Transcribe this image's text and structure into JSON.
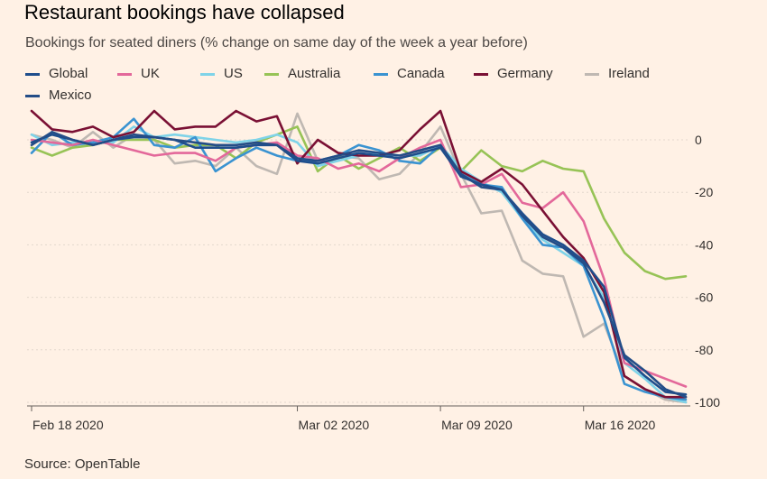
{
  "title": "Restaurant bookings have collapsed",
  "subtitle": "Bookings for seated diners (% change on same day of the week a year before)",
  "source": "Source: OpenTable",
  "legend": [
    {
      "label": "Global",
      "color": "#1f4e8c"
    },
    {
      "label": "UK",
      "color": "#e3689a"
    },
    {
      "label": "US",
      "color": "#7fd3e8"
    },
    {
      "label": "Australia",
      "color": "#97c356"
    },
    {
      "label": "Canada",
      "color": "#3a93d1"
    },
    {
      "label": "Germany",
      "color": "#7a1034"
    },
    {
      "label": "Ireland",
      "color": "#bfb8b2"
    },
    {
      "label": "Mexico",
      "color": "#244d87"
    }
  ],
  "chart_data": {
    "type": "line",
    "title": "Restaurant bookings have collapsed",
    "subtitle": "Bookings for seated diners (% change on same day of the week a year before)",
    "xlabel": "",
    "ylabel": "",
    "x": [
      "2020-02-18",
      "2020-02-19",
      "2020-02-20",
      "2020-02-21",
      "2020-02-22",
      "2020-02-23",
      "2020-02-24",
      "2020-02-25",
      "2020-02-26",
      "2020-02-27",
      "2020-02-28",
      "2020-02-29",
      "2020-03-01",
      "2020-03-02",
      "2020-03-03",
      "2020-03-04",
      "2020-03-05",
      "2020-03-06",
      "2020-03-07",
      "2020-03-08",
      "2020-03-09",
      "2020-03-10",
      "2020-03-11",
      "2020-03-12",
      "2020-03-13",
      "2020-03-14",
      "2020-03-15",
      "2020-03-16",
      "2020-03-17",
      "2020-03-18",
      "2020-03-19",
      "2020-03-20",
      "2020-03-21"
    ],
    "x_ticks": [
      {
        "date": "2020-02-18",
        "label": "Feb 18 2020"
      },
      {
        "date": "2020-03-02",
        "label": "Mar 02 2020"
      },
      {
        "date": "2020-03-09",
        "label": "Mar 09 2020"
      },
      {
        "date": "2020-03-16",
        "label": "Mar 16 2020"
      }
    ],
    "ylim": [
      -100,
      12
    ],
    "yticks": [
      0,
      -20,
      -40,
      -60,
      -80,
      -100
    ],
    "grid": true,
    "legend_position": "top",
    "series": [
      {
        "name": "Ireland",
        "color": "#bfb8b2",
        "values": [
          2,
          0,
          -3,
          3,
          -3,
          2,
          0,
          -9,
          -8,
          -10,
          -3,
          -10,
          -13,
          10,
          -8,
          -6,
          -7,
          -15,
          -13,
          -5,
          5,
          -13,
          -28,
          -27,
          -46,
          -51,
          -52,
          -75,
          -70,
          -90,
          -95,
          -99,
          -100
        ]
      },
      {
        "name": "Australia",
        "color": "#97c356",
        "values": [
          -3,
          -6,
          -3,
          -2,
          0,
          0,
          0,
          -3,
          -2,
          -2,
          -7,
          -1,
          2,
          5,
          -12,
          -6,
          -11,
          -7,
          -3,
          -8,
          -3,
          -12,
          -4,
          -10,
          -12,
          -8,
          -11,
          -12,
          -30,
          -43,
          -50,
          -53,
          -52
        ]
      },
      {
        "name": "US",
        "color": "#7fd3e8",
        "values": [
          2,
          -2,
          -1,
          -1,
          -1,
          5,
          1,
          2,
          1,
          0,
          -1,
          0,
          2,
          -1,
          -10,
          -8,
          -6,
          -5,
          -6,
          -6,
          -2,
          -11,
          -16,
          -20,
          -30,
          -38,
          -43,
          -48,
          -60,
          -85,
          -91,
          -98,
          -100
        ]
      },
      {
        "name": "Canada",
        "color": "#3a93d1",
        "values": [
          -5,
          3,
          -2,
          -1,
          1,
          8,
          -2,
          -3,
          1,
          -12,
          -7,
          -3,
          -6,
          -8,
          -8,
          -6,
          -2,
          -4,
          -8,
          -9,
          -2,
          -13,
          -17,
          -18,
          -30,
          -40,
          -41,
          -48,
          -68,
          -93,
          -96,
          -98,
          -99
        ]
      },
      {
        "name": "UK",
        "color": "#e3689a",
        "values": [
          0,
          -1,
          -2,
          0,
          -2,
          -4,
          -6,
          -5,
          -5,
          -8,
          -3,
          -2,
          -1,
          -6,
          -7,
          -11,
          -9,
          -12,
          -7,
          -3,
          0,
          -18,
          -17,
          -13,
          -24,
          -26,
          -20,
          -31,
          -53,
          -85,
          -88,
          -91,
          -94
        ]
      },
      {
        "name": "Germany",
        "color": "#7a1034",
        "values": [
          11,
          4,
          3,
          5,
          1,
          3,
          11,
          4,
          5,
          5,
          11,
          7,
          9,
          -9,
          0,
          -5,
          -6,
          -6,
          -4,
          4,
          11,
          -12,
          -16,
          -11,
          -17,
          -27,
          -37,
          -45,
          -58,
          -90,
          -95,
          -98,
          -98
        ]
      },
      {
        "name": "Global",
        "color": "#1f4e8c",
        "values": [
          -1,
          2,
          0,
          -2,
          0,
          1,
          1,
          0,
          -3,
          -3,
          -3,
          -2,
          -2,
          -8,
          -9,
          -7,
          -5,
          -6,
          -7,
          -5,
          -3,
          -14,
          -17,
          -19,
          -28,
          -36,
          -40,
          -46,
          -56,
          -83,
          -90,
          -96,
          -97
        ]
      },
      {
        "name": "Mexico",
        "color": "#244d87",
        "values": [
          -2,
          3,
          0,
          -2,
          0,
          2,
          1,
          0,
          -1,
          -2,
          -2,
          -1,
          -2,
          -7,
          -8,
          -6,
          -4,
          -5,
          -6,
          -4,
          -2,
          -13,
          -18,
          -19,
          -29,
          -37,
          -41,
          -47,
          -62,
          -82,
          -88,
          -95,
          -98
        ]
      }
    ]
  }
}
